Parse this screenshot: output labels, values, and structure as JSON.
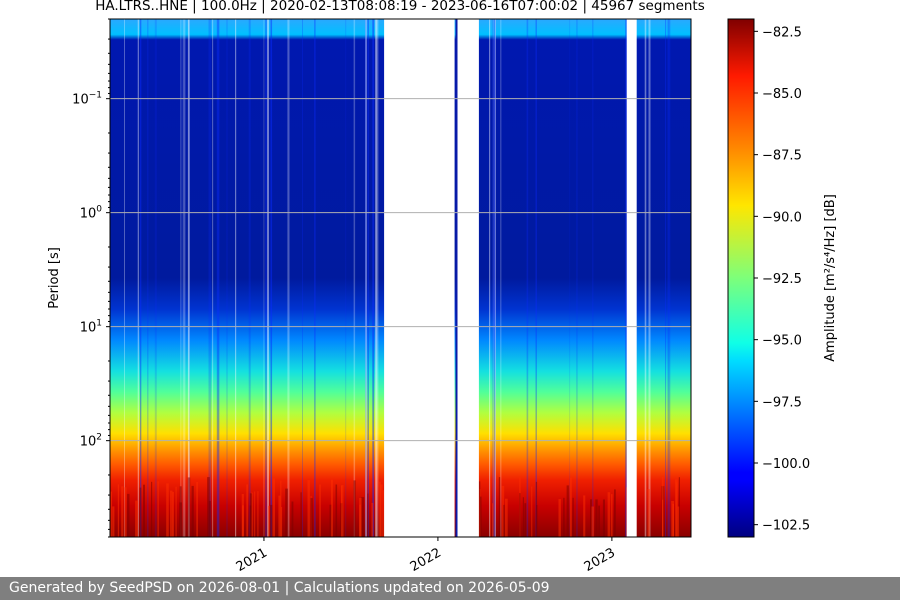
{
  "chart_data": {
    "type": "heatmap",
    "title": "HA.LTRS..HNE | 100.0Hz | 2020-02-13T08:08:19 - 2023-06-16T07:00:02 | 45967 segments",
    "ylabel": "Period [s]",
    "y_scale": "log",
    "y_inverted": true,
    "y_ticks": [
      {
        "value": 0.1,
        "base": "10",
        "exp": "−1"
      },
      {
        "value": 1,
        "base": "10",
        "exp": "0"
      },
      {
        "value": 10,
        "base": "10",
        "exp": "1"
      },
      {
        "value": 100,
        "base": "10",
        "exp": "2"
      }
    ],
    "ylim": [
      0.02,
      700
    ],
    "xlim": [
      "2020-02-13",
      "2023-06-16"
    ],
    "x_ticks": [
      {
        "value": "2021-01-01",
        "label": "2021"
      },
      {
        "value": "2022-01-01",
        "label": "2022"
      },
      {
        "value": "2023-01-01",
        "label": "2023"
      }
    ],
    "data_gaps": [
      [
        "2021-09-10",
        "2022-02-05"
      ],
      [
        "2022-02-10",
        "2022-03-28"
      ],
      [
        "2023-02-01",
        "2023-02-22"
      ]
    ],
    "colorbar": {
      "label": "Amplitude [m²/s⁴/Hz] [dB]",
      "ticks": [
        "−82.5",
        "−85.0",
        "−87.5",
        "−90.0",
        "−92.5",
        "−95.0",
        "−97.5",
        "−100.0",
        "−102.5"
      ],
      "range": [
        -103,
        -82
      ],
      "colormap": "jet"
    },
    "grid": true
  },
  "footer": {
    "text": "Generated by SeedPSD on 2026-08-01 | Calculations updated on 2026-05-09"
  }
}
